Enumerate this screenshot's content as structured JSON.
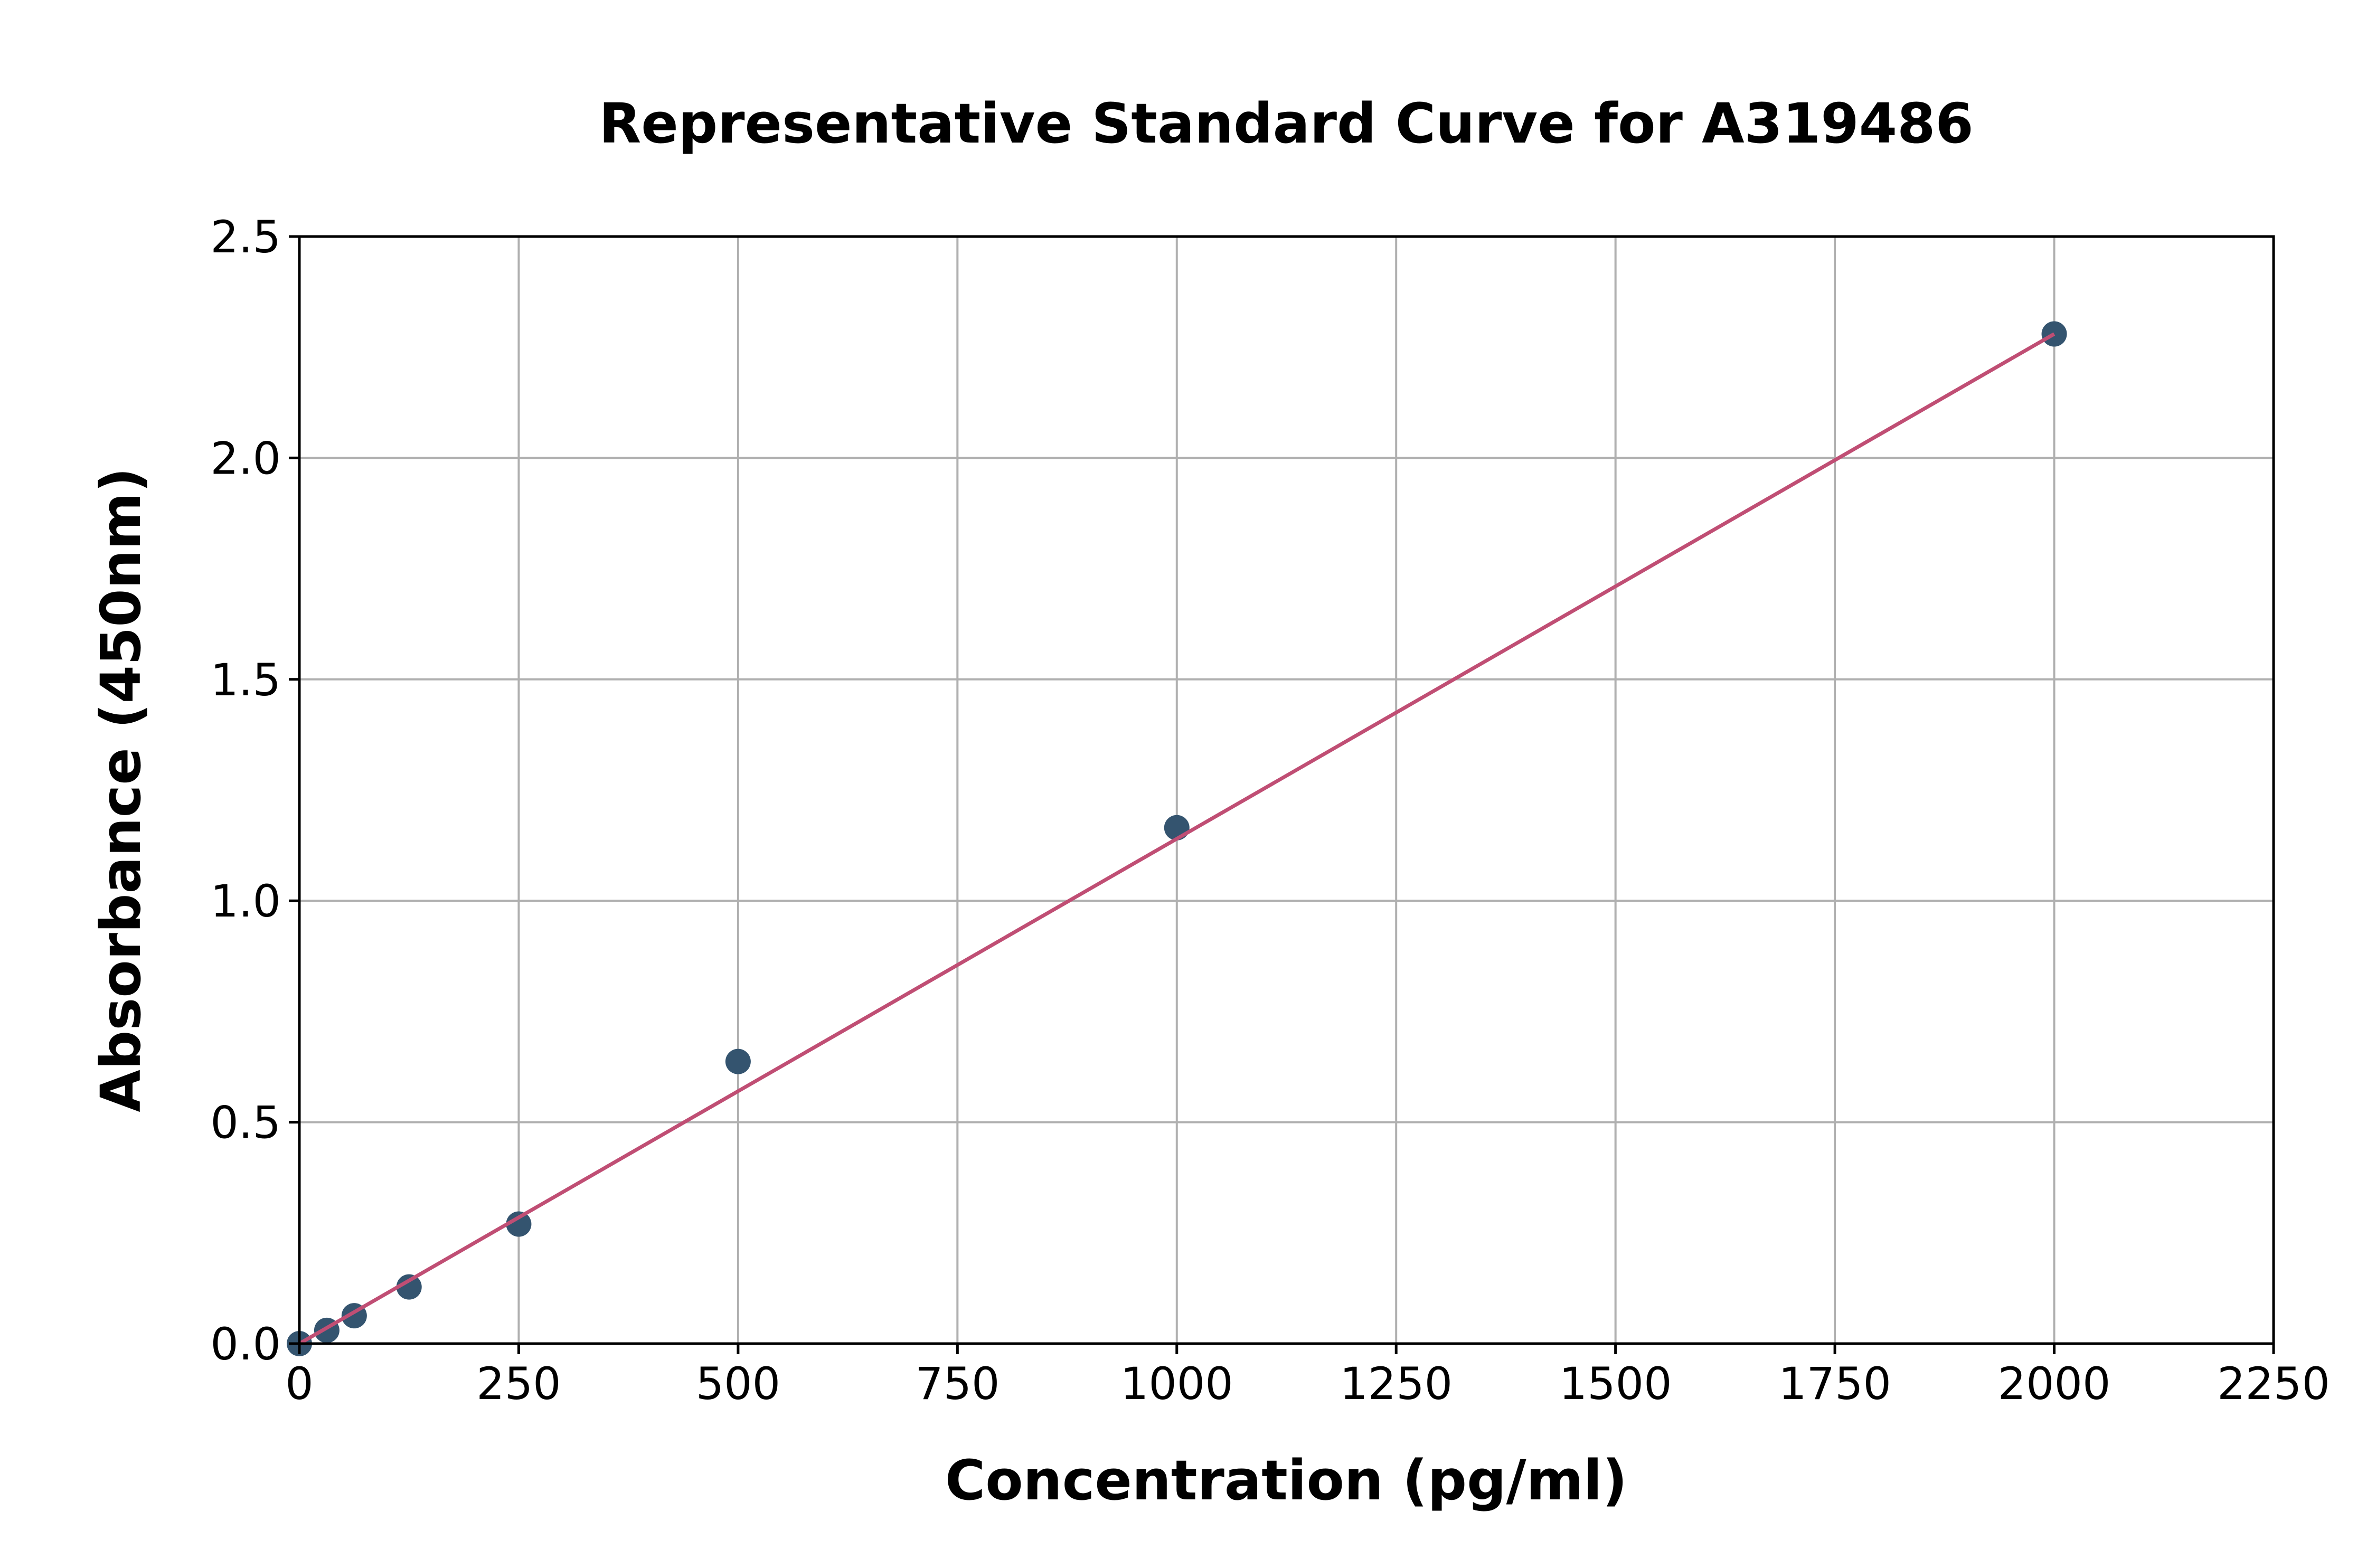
{
  "chart_data": {
    "type": "scatter",
    "title": "Representative Standard Curve for A319486",
    "xlabel": "Concentration (pg/ml)",
    "ylabel": "Absorbance (450nm)",
    "xlim": [
      0,
      2250
    ],
    "ylim": [
      0,
      2.5
    ],
    "xticks": [
      "0",
      "250",
      "500",
      "750",
      "1000",
      "1250",
      "1500",
      "1750",
      "2000",
      "2250"
    ],
    "yticks": [
      "0.0",
      "0.5",
      "1.0",
      "1.5",
      "2.0",
      "2.5"
    ],
    "grid": true,
    "points": {
      "x": [
        0,
        31.25,
        62.5,
        125,
        250,
        500,
        1000,
        2000
      ],
      "y": [
        0.0,
        0.03,
        0.063,
        0.128,
        0.27,
        0.637,
        1.165,
        2.28
      ]
    },
    "fit_line": {
      "x": [
        0,
        2000
      ],
      "y": [
        -0.01,
        2.28
      ]
    },
    "colors": {
      "points": "#34546f",
      "fit_line": "#c04e74",
      "grid": "#b0b0b0"
    }
  }
}
